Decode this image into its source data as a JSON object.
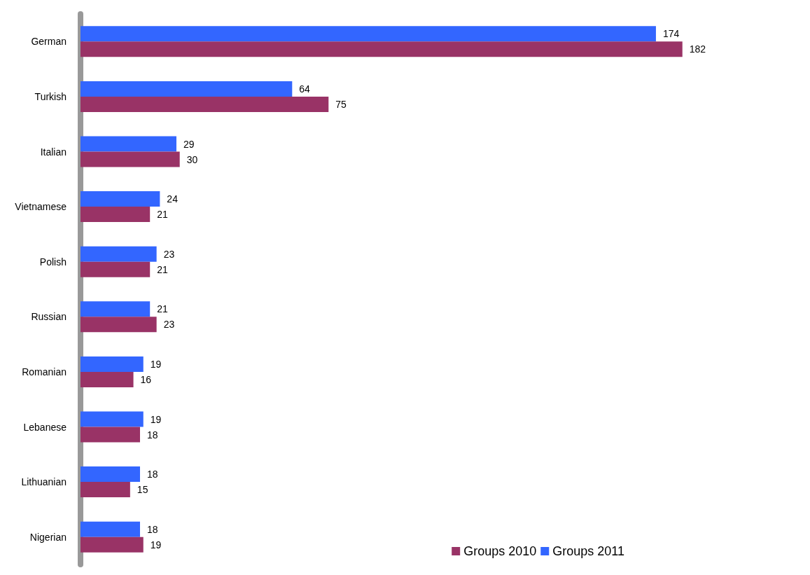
{
  "chart_data": {
    "type": "bar",
    "orientation": "horizontal",
    "categories": [
      "German",
      "Turkish",
      "Italian",
      "Vietnamese",
      "Polish",
      "Russian",
      "Romanian",
      "Lebanese",
      "Lithuanian",
      "Nigerian"
    ],
    "series": [
      {
        "name": "Groups 2010",
        "color": "#993366",
        "values": [
          182,
          75,
          30,
          21,
          21,
          23,
          16,
          18,
          15,
          19
        ]
      },
      {
        "name": "Groups 2011",
        "color": "#3366ff",
        "values": [
          174,
          64,
          29,
          24,
          23,
          21,
          19,
          19,
          18,
          18
        ]
      }
    ],
    "data_labels": true,
    "legend": "bottom right",
    "grid": false
  }
}
